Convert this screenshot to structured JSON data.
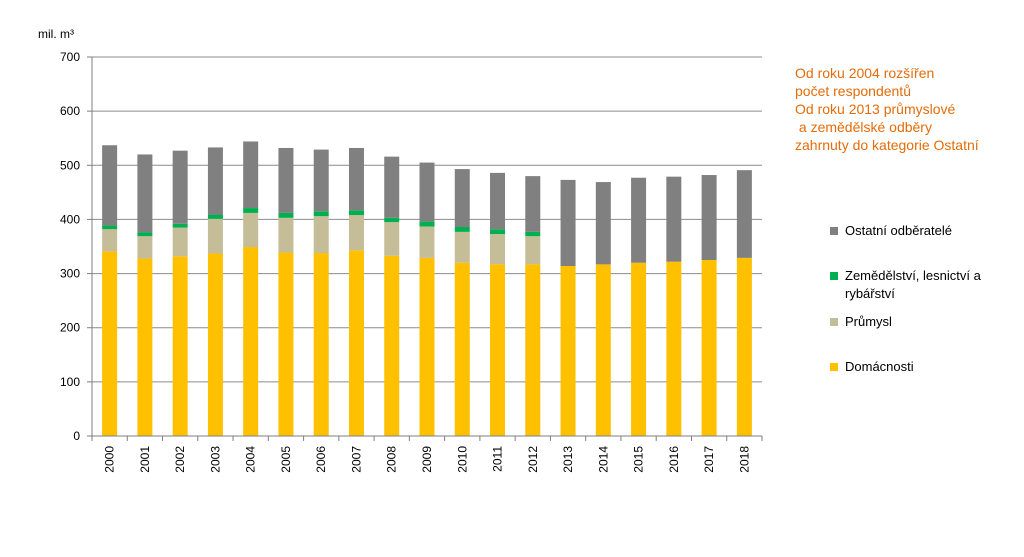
{
  "chart_data": {
    "type": "bar",
    "stacked": true,
    "ylabel": "mil. m³",
    "ylim": [
      0,
      700
    ],
    "yticks": [
      0,
      100,
      200,
      300,
      400,
      500,
      600,
      700
    ],
    "grid": true,
    "legend_position": "right",
    "categories": [
      "2000",
      "2001",
      "2002",
      "2003",
      "2004",
      "2005",
      "2006",
      "2007",
      "2008",
      "2009",
      "2010",
      "2011",
      "2012",
      "2013",
      "2014",
      "2015",
      "2016",
      "2017",
      "2018"
    ],
    "series": [
      {
        "name": "Domácnosti",
        "color": "#ffc000",
        "values": [
          341,
          328,
          332,
          337,
          349,
          339,
          338,
          343,
          333,
          329,
          320,
          317,
          317,
          314,
          317,
          320,
          322,
          325,
          329
        ]
      },
      {
        "name": "Průmysl",
        "color": "#c4bd97",
        "values": [
          41,
          41,
          53,
          64,
          63,
          64,
          68,
          65,
          62,
          58,
          57,
          56,
          52,
          0,
          0,
          0,
          0,
          0,
          0
        ]
      },
      {
        "name": "Zemědělství, lesnictví a rybářství",
        "color": "#00b050",
        "values": [
          7,
          7,
          7,
          8,
          9,
          9,
          9,
          9,
          8,
          9,
          9,
          9,
          8,
          0,
          0,
          0,
          0,
          0,
          0
        ]
      },
      {
        "name": "Ostatní odběratelé",
        "color": "#808080",
        "values": [
          148,
          144,
          135,
          124,
          123,
          120,
          114,
          115,
          113,
          109,
          107,
          104,
          103,
          159,
          152,
          157,
          157,
          157,
          162
        ]
      }
    ],
    "annotations": [
      "Od roku 2004 rozšířen",
      "počet respondentů",
      "Od roku 2013 průmyslové",
      " a zemědělské odběry",
      "zahrnuty do kategorie Ostatní"
    ]
  },
  "legend": [
    {
      "label": "Ostatní odběratelé",
      "color": "#808080"
    },
    {
      "label": "Zemědělství, lesnictví a\nrybářství",
      "color": "#00b050"
    },
    {
      "label": "Průmysl",
      "color": "#c4bd97"
    },
    {
      "label": "Domácnosti",
      "color": "#ffc000"
    }
  ]
}
